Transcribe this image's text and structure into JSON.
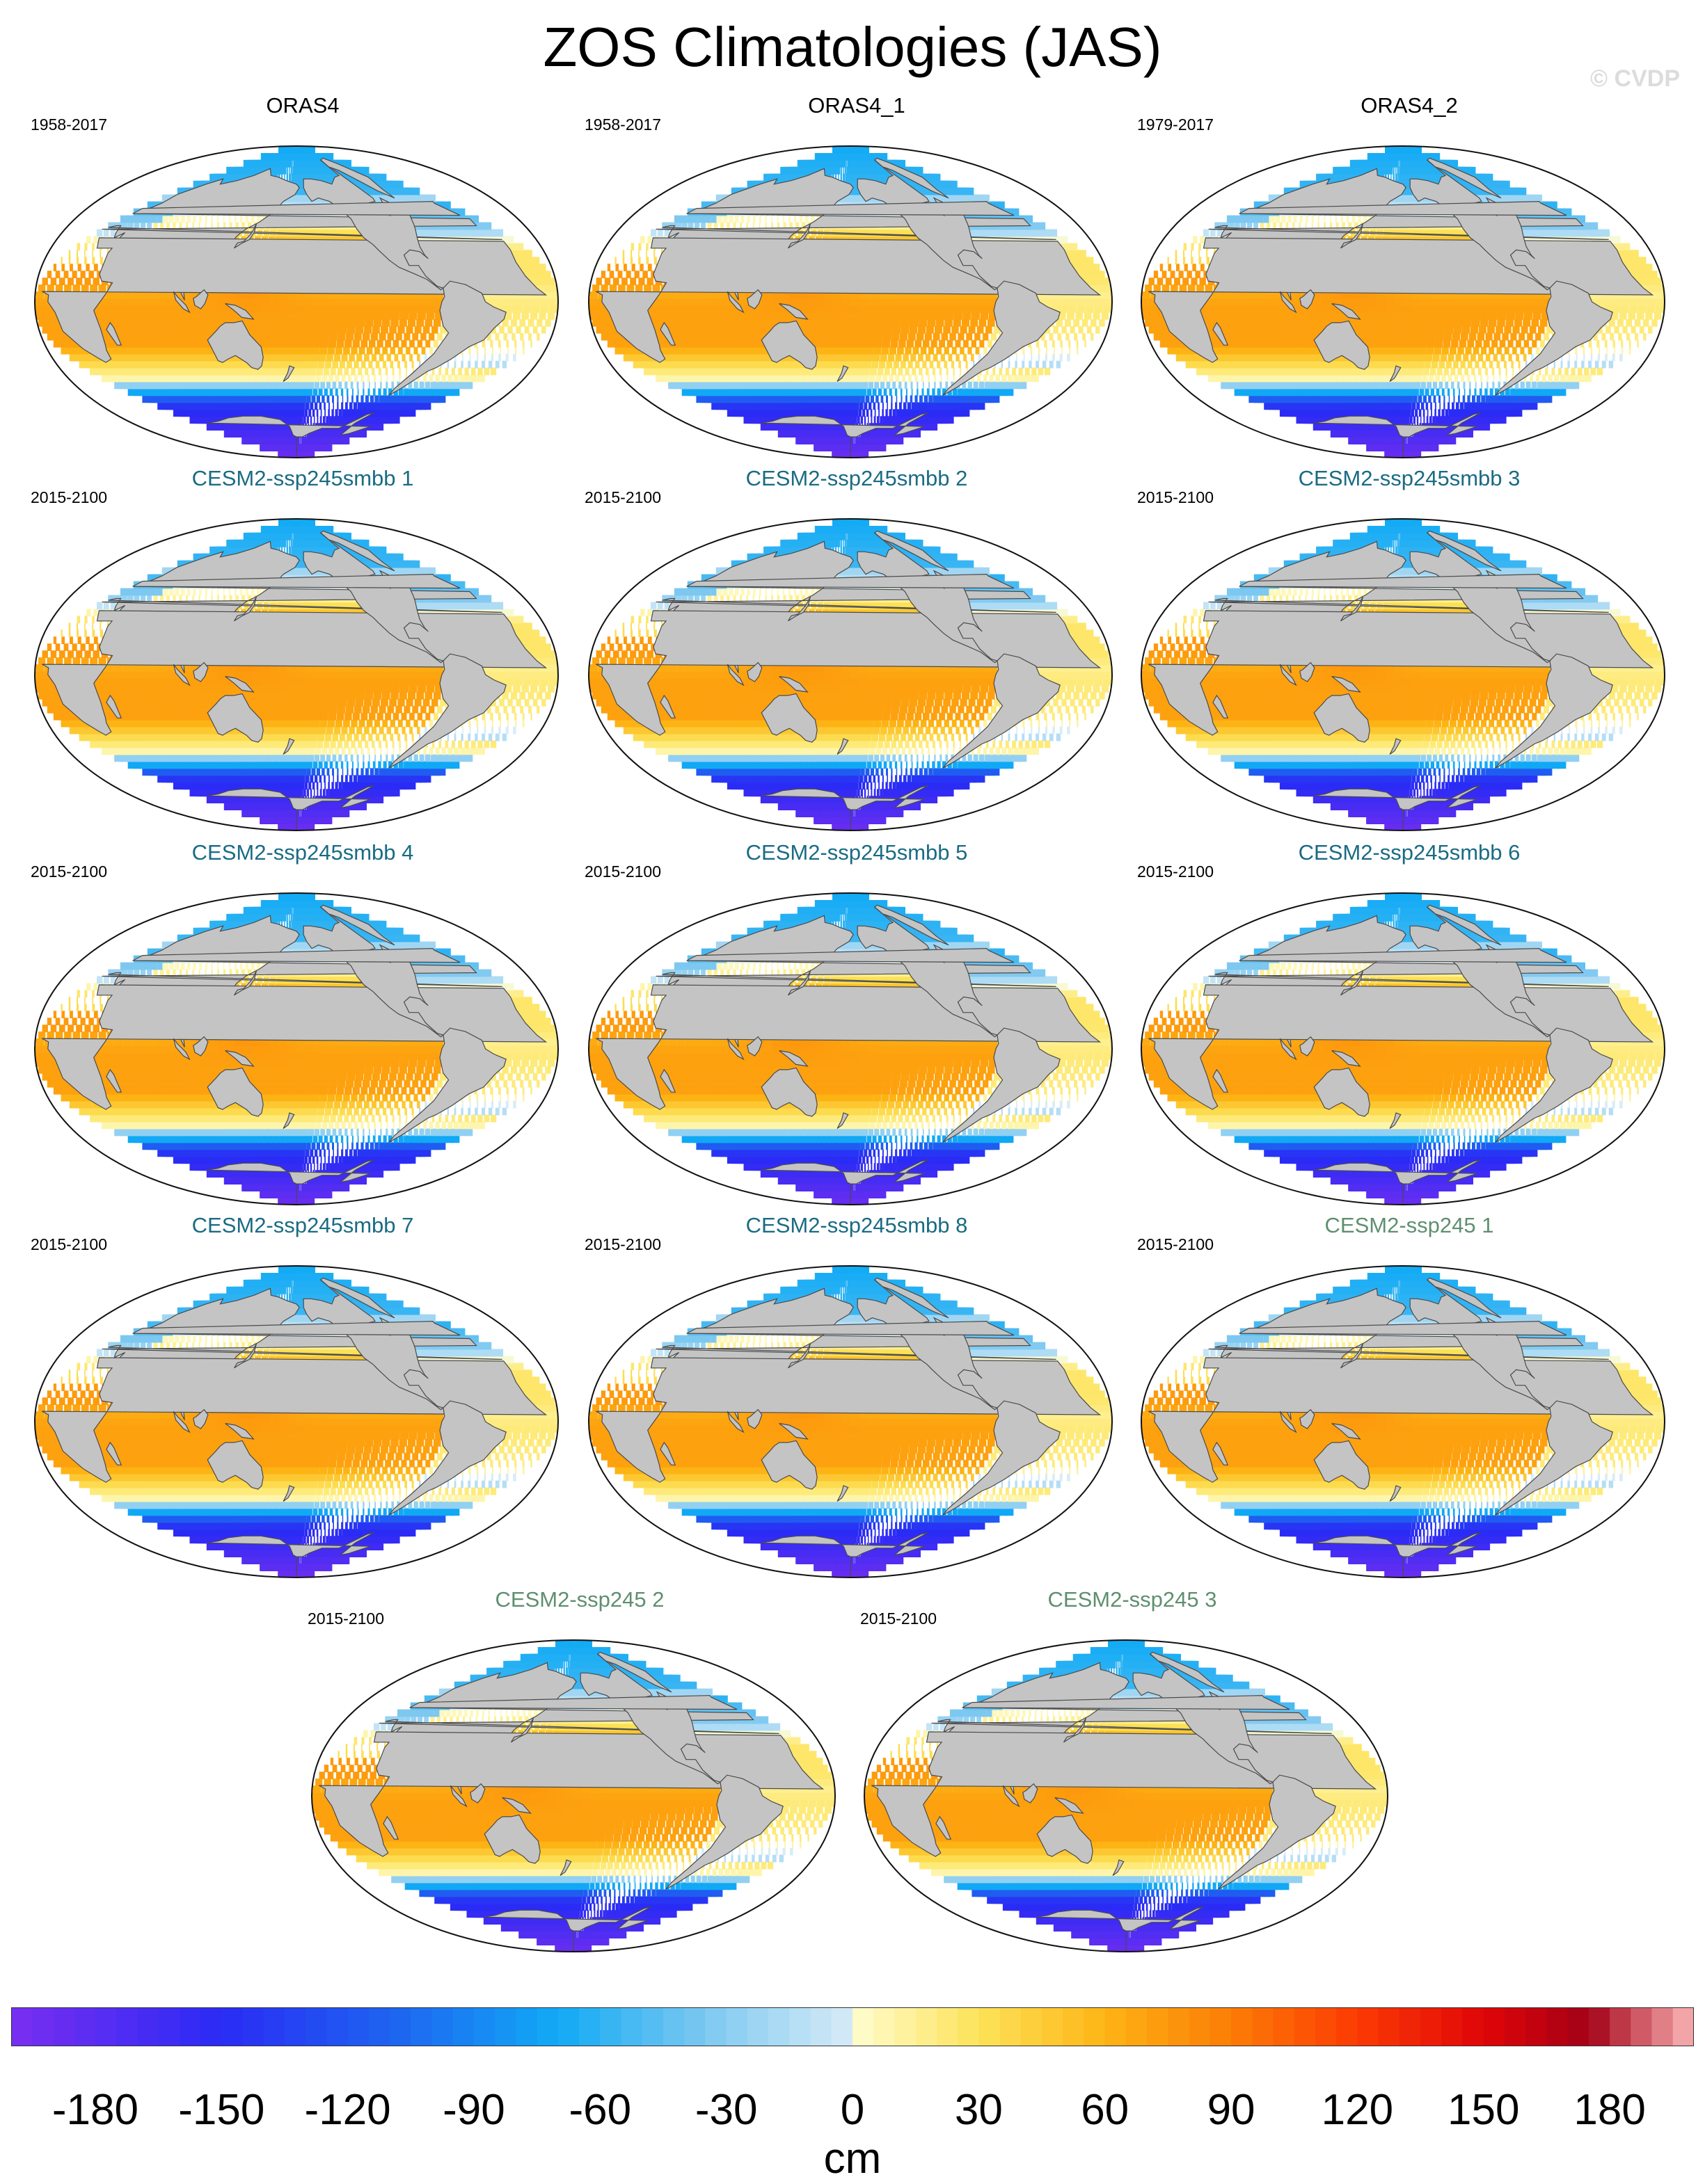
{
  "title": "ZOS Climatologies (JAS)",
  "watermark": "© CVDP",
  "colors": {
    "land": "#c4c4c4",
    "coast": "#4a4a4a",
    "obs_title": "#000000",
    "smbb_title": "#1a6b84",
    "ssp_title": "#5f8f6f"
  },
  "panels": [
    {
      "name": "ORAS4",
      "years": "1958-2017",
      "group": "obs"
    },
    {
      "name": "ORAS4_1",
      "years": "1958-2017",
      "group": "obs"
    },
    {
      "name": "ORAS4_2",
      "years": "1979-2017",
      "group": "obs"
    },
    {
      "name": "CESM2-ssp245smbb 1",
      "years": "2015-2100",
      "group": "smbb"
    },
    {
      "name": "CESM2-ssp245smbb 2",
      "years": "2015-2100",
      "group": "smbb"
    },
    {
      "name": "CESM2-ssp245smbb 3",
      "years": "2015-2100",
      "group": "smbb"
    },
    {
      "name": "CESM2-ssp245smbb 4",
      "years": "2015-2100",
      "group": "smbb"
    },
    {
      "name": "CESM2-ssp245smbb 5",
      "years": "2015-2100",
      "group": "smbb"
    },
    {
      "name": "CESM2-ssp245smbb 6",
      "years": "2015-2100",
      "group": "smbb"
    },
    {
      "name": "CESM2-ssp245smbb 7",
      "years": "2015-2100",
      "group": "smbb"
    },
    {
      "name": "CESM2-ssp245smbb 8",
      "years": "2015-2100",
      "group": "smbb"
    },
    {
      "name": "CESM2-ssp245 1",
      "years": "2015-2100",
      "group": "ssp"
    },
    {
      "name": "CESM2-ssp245 2",
      "years": "2015-2100",
      "group": "ssp"
    },
    {
      "name": "CESM2-ssp245 3",
      "years": "2015-2100",
      "group": "ssp"
    }
  ],
  "colorbar": {
    "units": "cm",
    "min": -200,
    "max": 200,
    "tick_labels": [
      "-180",
      "-150",
      "-120",
      "-90",
      "-60",
      "-30",
      "0",
      "30",
      "60",
      "90",
      "120",
      "150",
      "180"
    ],
    "tick_values": [
      -180,
      -150,
      -120,
      -90,
      -60,
      -30,
      0,
      30,
      60,
      90,
      120,
      150,
      180
    ],
    "stops": [
      {
        "value": -200,
        "color": "#7a2ef0"
      },
      {
        "value": -150,
        "color": "#2a2bf5"
      },
      {
        "value": -110,
        "color": "#1e63f0"
      },
      {
        "value": -70,
        "color": "#11aaf5"
      },
      {
        "value": -35,
        "color": "#7cc8f0"
      },
      {
        "value": 0,
        "color": "#d8ecf8"
      },
      {
        "value": 1,
        "color": "#fffccc"
      },
      {
        "value": 30,
        "color": "#fde35a"
      },
      {
        "value": 60,
        "color": "#fdb414"
      },
      {
        "value": 90,
        "color": "#fc7c06"
      },
      {
        "value": 120,
        "color": "#fc3a04"
      },
      {
        "value": 150,
        "color": "#e00608"
      },
      {
        "value": 175,
        "color": "#a30016"
      },
      {
        "value": 200,
        "color": "#fcb6b6"
      }
    ]
  }
}
